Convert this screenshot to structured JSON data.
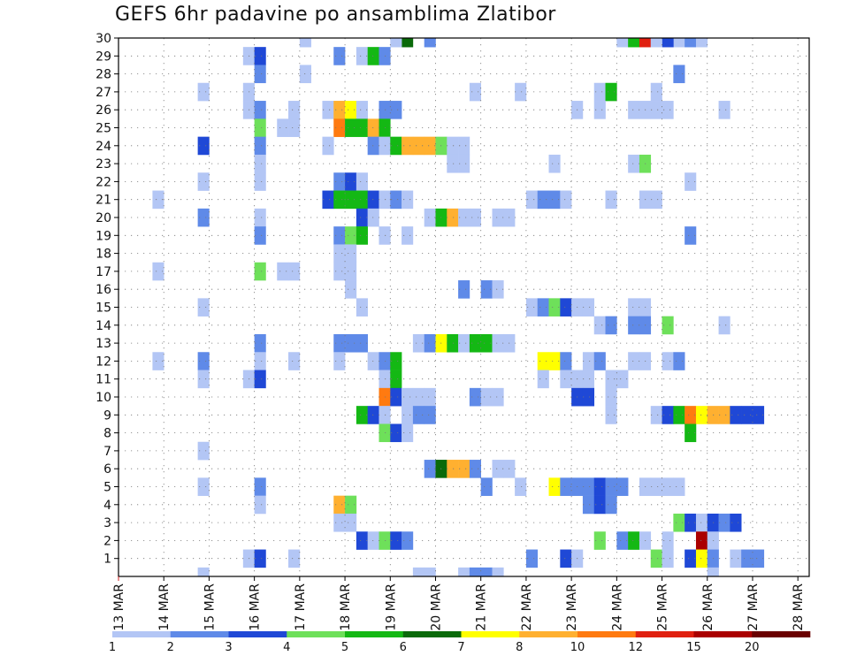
{
  "chart_data": {
    "type": "heatmap",
    "title": "GEFS 6hr padavine po ansamblima Zlatibor",
    "xlabel": "",
    "ylabel": "",
    "x_tick_labels": [
      "13 MAR",
      "14 MAR",
      "15 MAR",
      "16 MAR",
      "17 MAR",
      "18 MAR",
      "19 MAR",
      "20 MAR",
      "21 MAR",
      "22 MAR",
      "23 MAR",
      "24 MAR",
      "25 MAR",
      "26 MAR",
      "27 MAR",
      "28 MAR"
    ],
    "y_tick_labels": [
      "1",
      "2",
      "3",
      "4",
      "5",
      "6",
      "7",
      "8",
      "9",
      "10",
      "11",
      "12",
      "13",
      "14",
      "15",
      "16",
      "17",
      "18",
      "19",
      "20",
      "21",
      "22",
      "23",
      "24",
      "25",
      "26",
      "27",
      "28",
      "29",
      "30"
    ],
    "time_steps_per_day": 4,
    "num_steps": 61,
    "colorbar": {
      "labels": [
        "1",
        "2",
        "3",
        "4",
        "5",
        "6",
        "7",
        "8",
        "10",
        "12",
        "15",
        "20"
      ],
      "colors": [
        "#b3c6f5",
        "#5f8ae8",
        "#1f48d6",
        "#6ee05a",
        "#14b814",
        "#0a6a0a",
        "#ffff00",
        "#ffb030",
        "#ff7a10",
        "#e02010",
        "#aa0000",
        "#6a0000"
      ]
    },
    "cells": [
      [
        30,
        16,
        1
      ],
      [
        30,
        44,
        1
      ],
      [
        30,
        49,
        1
      ],
      [
        30,
        50,
        2
      ],
      [
        30,
        51,
        1
      ],
      [
        30,
        25,
        6
      ],
      [
        30,
        24,
        1
      ],
      [
        30,
        27,
        2
      ],
      [
        30,
        48,
        3
      ],
      [
        30,
        45,
        5
      ],
      [
        30,
        46,
        12
      ],
      [
        30,
        47,
        1
      ],
      [
        29,
        11,
        1
      ],
      [
        29,
        12,
        3
      ],
      [
        29,
        19,
        2
      ],
      [
        29,
        21,
        1
      ],
      [
        29,
        22,
        5
      ],
      [
        29,
        23,
        2
      ],
      [
        28,
        12,
        2
      ],
      [
        28,
        16,
        1
      ],
      [
        28,
        49,
        2
      ],
      [
        27,
        7,
        1
      ],
      [
        27,
        11,
        1
      ],
      [
        27,
        31,
        1
      ],
      [
        27,
        35,
        1
      ],
      [
        27,
        42,
        1
      ],
      [
        27,
        43,
        5
      ],
      [
        27,
        47,
        1
      ],
      [
        26,
        11,
        1
      ],
      [
        26,
        12,
        2
      ],
      [
        26,
        15,
        1
      ],
      [
        26,
        18,
        1
      ],
      [
        26,
        19,
        8
      ],
      [
        26,
        20,
        7
      ],
      [
        26,
        21,
        1
      ],
      [
        26,
        23,
        2
      ],
      [
        26,
        24,
        2
      ],
      [
        26,
        40,
        1
      ],
      [
        26,
        42,
        1
      ],
      [
        26,
        45,
        1
      ],
      [
        26,
        46,
        1
      ],
      [
        26,
        47,
        1
      ],
      [
        26,
        48,
        1
      ],
      [
        26,
        53,
        1
      ],
      [
        25,
        12,
        4
      ],
      [
        25,
        14,
        1
      ],
      [
        25,
        15,
        1
      ],
      [
        25,
        19,
        10
      ],
      [
        25,
        20,
        5
      ],
      [
        25,
        21,
        5
      ],
      [
        25,
        22,
        8
      ],
      [
        25,
        23,
        5
      ],
      [
        24,
        7,
        3
      ],
      [
        24,
        12,
        2
      ],
      [
        24,
        18,
        1
      ],
      [
        24,
        22,
        2
      ],
      [
        24,
        23,
        1
      ],
      [
        24,
        24,
        5
      ],
      [
        24,
        25,
        8
      ],
      [
        24,
        26,
        8
      ],
      [
        24,
        27,
        8
      ],
      [
        24,
        28,
        4
      ],
      [
        24,
        29,
        1
      ],
      [
        24,
        30,
        1
      ],
      [
        23,
        12,
        1
      ],
      [
        23,
        29,
        1
      ],
      [
        23,
        30,
        1
      ],
      [
        23,
        38,
        1
      ],
      [
        23,
        45,
        1
      ],
      [
        23,
        46,
        4
      ],
      [
        22,
        7,
        1
      ],
      [
        22,
        12,
        1
      ],
      [
        22,
        19,
        2
      ],
      [
        22,
        20,
        3
      ],
      [
        22,
        21,
        1
      ],
      [
        22,
        50,
        1
      ],
      [
        21,
        3,
        1
      ],
      [
        21,
        18,
        3
      ],
      [
        21,
        19,
        5
      ],
      [
        21,
        20,
        5
      ],
      [
        21,
        21,
        5
      ],
      [
        21,
        22,
        3
      ],
      [
        21,
        23,
        1
      ],
      [
        21,
        24,
        2
      ],
      [
        21,
        25,
        1
      ],
      [
        21,
        36,
        1
      ],
      [
        21,
        37,
        2
      ],
      [
        21,
        38,
        2
      ],
      [
        21,
        39,
        1
      ],
      [
        21,
        43,
        1
      ],
      [
        21,
        46,
        1
      ],
      [
        21,
        47,
        1
      ],
      [
        20,
        7,
        2
      ],
      [
        20,
        12,
        1
      ],
      [
        20,
        21,
        3
      ],
      [
        20,
        22,
        1
      ],
      [
        20,
        27,
        1
      ],
      [
        20,
        28,
        5
      ],
      [
        20,
        29,
        8
      ],
      [
        20,
        30,
        1
      ],
      [
        20,
        31,
        1
      ],
      [
        20,
        33,
        1
      ],
      [
        20,
        34,
        1
      ],
      [
        19,
        12,
        2
      ],
      [
        19,
        19,
        2
      ],
      [
        19,
        20,
        4
      ],
      [
        19,
        21,
        5
      ],
      [
        19,
        23,
        1
      ],
      [
        19,
        25,
        1
      ],
      [
        19,
        50,
        2
      ],
      [
        18,
        19,
        1
      ],
      [
        18,
        20,
        1
      ],
      [
        17,
        3,
        1
      ],
      [
        17,
        12,
        4
      ],
      [
        17,
        14,
        1
      ],
      [
        17,
        15,
        1
      ],
      [
        17,
        19,
        1
      ],
      [
        17,
        20,
        1
      ],
      [
        16,
        20,
        1
      ],
      [
        16,
        30,
        2
      ],
      [
        16,
        32,
        2
      ],
      [
        16,
        33,
        1
      ],
      [
        15,
        7,
        1
      ],
      [
        15,
        21,
        1
      ],
      [
        15,
        36,
        1
      ],
      [
        15,
        37,
        2
      ],
      [
        15,
        38,
        4
      ],
      [
        15,
        39,
        3
      ],
      [
        15,
        40,
        1
      ],
      [
        15,
        41,
        1
      ],
      [
        15,
        45,
        1
      ],
      [
        15,
        46,
        1
      ],
      [
        14,
        42,
        1
      ],
      [
        14,
        43,
        2
      ],
      [
        14,
        45,
        2
      ],
      [
        14,
        46,
        2
      ],
      [
        14,
        48,
        4
      ],
      [
        14,
        53,
        1
      ],
      [
        13,
        12,
        2
      ],
      [
        13,
        19,
        2
      ],
      [
        13,
        20,
        2
      ],
      [
        13,
        21,
        2
      ],
      [
        13,
        26,
        1
      ],
      [
        13,
        27,
        2
      ],
      [
        13,
        28,
        7
      ],
      [
        13,
        29,
        5
      ],
      [
        13,
        30,
        1
      ],
      [
        13,
        31,
        5
      ],
      [
        13,
        32,
        5
      ],
      [
        13,
        33,
        1
      ],
      [
        13,
        34,
        1
      ],
      [
        12,
        3,
        1
      ],
      [
        12,
        7,
        2
      ],
      [
        12,
        12,
        1
      ],
      [
        12,
        15,
        1
      ],
      [
        12,
        19,
        1
      ],
      [
        12,
        22,
        1
      ],
      [
        12,
        23,
        2
      ],
      [
        12,
        24,
        5
      ],
      [
        12,
        37,
        7
      ],
      [
        12,
        38,
        7
      ],
      [
        12,
        39,
        2
      ],
      [
        12,
        41,
        1
      ],
      [
        12,
        42,
        2
      ],
      [
        12,
        45,
        1
      ],
      [
        12,
        46,
        1
      ],
      [
        12,
        48,
        1
      ],
      [
        12,
        49,
        2
      ],
      [
        11,
        7,
        1
      ],
      [
        11,
        11,
        1
      ],
      [
        11,
        12,
        3
      ],
      [
        11,
        23,
        1
      ],
      [
        11,
        24,
        5
      ],
      [
        11,
        37,
        1
      ],
      [
        11,
        39,
        1
      ],
      [
        11,
        40,
        1
      ],
      [
        11,
        41,
        1
      ],
      [
        11,
        43,
        1
      ],
      [
        11,
        44,
        1
      ],
      [
        10,
        23,
        10
      ],
      [
        10,
        24,
        3
      ],
      [
        10,
        25,
        1
      ],
      [
        10,
        26,
        1
      ],
      [
        10,
        27,
        1
      ],
      [
        10,
        31,
        2
      ],
      [
        10,
        32,
        1
      ],
      [
        10,
        33,
        1
      ],
      [
        10,
        40,
        3
      ],
      [
        10,
        41,
        3
      ],
      [
        10,
        43,
        1
      ],
      [
        9,
        21,
        5
      ],
      [
        9,
        22,
        3
      ],
      [
        9,
        23,
        1
      ],
      [
        9,
        25,
        1
      ],
      [
        9,
        26,
        2
      ],
      [
        9,
        27,
        2
      ],
      [
        9,
        43,
        1
      ],
      [
        9,
        47,
        1
      ],
      [
        9,
        48,
        3
      ],
      [
        9,
        49,
        5
      ],
      [
        9,
        50,
        10
      ],
      [
        9,
        51,
        7
      ],
      [
        9,
        52,
        8
      ],
      [
        9,
        53,
        8
      ],
      [
        9,
        54,
        3
      ],
      [
        9,
        55,
        3
      ],
      [
        9,
        56,
        3
      ],
      [
        8,
        23,
        4
      ],
      [
        8,
        24,
        3
      ],
      [
        8,
        25,
        1
      ],
      [
        8,
        50,
        5
      ],
      [
        7,
        7,
        1
      ],
      [
        6,
        27,
        2
      ],
      [
        6,
        28,
        6
      ],
      [
        6,
        29,
        8
      ],
      [
        6,
        30,
        8
      ],
      [
        6,
        31,
        2
      ],
      [
        6,
        33,
        1
      ],
      [
        6,
        34,
        1
      ],
      [
        5,
        7,
        1
      ],
      [
        5,
        12,
        2
      ],
      [
        5,
        32,
        2
      ],
      [
        5,
        35,
        1
      ],
      [
        5,
        38,
        7
      ],
      [
        5,
        39,
        2
      ],
      [
        5,
        40,
        2
      ],
      [
        5,
        41,
        2
      ],
      [
        5,
        42,
        3
      ],
      [
        5,
        43,
        2
      ],
      [
        5,
        44,
        2
      ],
      [
        5,
        46,
        1
      ],
      [
        5,
        47,
        1
      ],
      [
        5,
        48,
        1
      ],
      [
        5,
        49,
        1
      ],
      [
        4,
        12,
        1
      ],
      [
        4,
        19,
        8
      ],
      [
        4,
        20,
        4
      ],
      [
        4,
        41,
        2
      ],
      [
        4,
        42,
        3
      ],
      [
        4,
        43,
        2
      ],
      [
        3,
        19,
        1
      ],
      [
        3,
        20,
        1
      ],
      [
        3,
        49,
        4
      ],
      [
        3,
        50,
        3
      ],
      [
        3,
        51,
        1
      ],
      [
        3,
        52,
        3
      ],
      [
        3,
        53,
        2
      ],
      [
        3,
        54,
        3
      ],
      [
        2,
        21,
        3
      ],
      [
        2,
        22,
        1
      ],
      [
        2,
        23,
        4
      ],
      [
        2,
        24,
        3
      ],
      [
        2,
        25,
        2
      ],
      [
        2,
        42,
        4
      ],
      [
        2,
        44,
        2
      ],
      [
        2,
        45,
        5
      ],
      [
        2,
        46,
        1
      ],
      [
        2,
        48,
        1
      ],
      [
        2,
        51,
        15
      ],
      [
        2,
        52,
        1
      ],
      [
        1,
        11,
        1
      ],
      [
        1,
        12,
        3
      ],
      [
        1,
        15,
        1
      ],
      [
        1,
        36,
        2
      ],
      [
        1,
        39,
        3
      ],
      [
        1,
        40,
        1
      ],
      [
        1,
        47,
        4
      ],
      [
        1,
        48,
        1
      ],
      [
        1,
        50,
        3
      ],
      [
        1,
        51,
        7
      ],
      [
        1,
        52,
        2
      ],
      [
        1,
        54,
        1
      ],
      [
        1,
        55,
        2
      ],
      [
        1,
        56,
        2
      ],
      [
        0,
        7,
        1
      ],
      [
        0,
        26,
        1
      ],
      [
        0,
        27,
        1
      ],
      [
        0,
        30,
        1
      ],
      [
        0,
        31,
        2
      ],
      [
        0,
        32,
        2
      ],
      [
        0,
        33,
        1
      ],
      [
        0,
        52,
        1
      ]
    ]
  }
}
